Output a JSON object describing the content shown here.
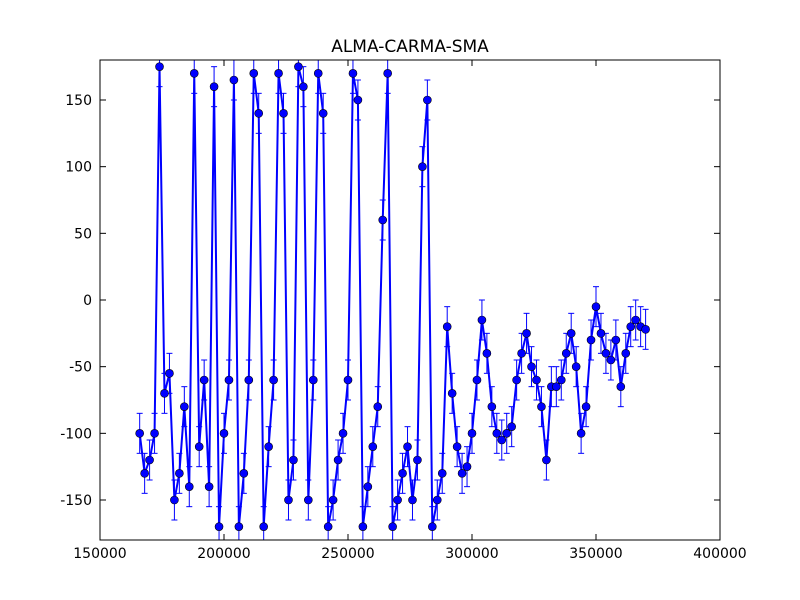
{
  "chart_data": {
    "type": "errorbar",
    "title": "ALMA-CARMA-SMA",
    "xlim": [
      150000,
      400000
    ],
    "xticks": [
      150000,
      200000,
      250000,
      300000,
      350000,
      400000
    ],
    "ylim": [
      -180,
      180
    ],
    "yticks": [
      -150,
      -100,
      -50,
      0,
      50,
      100,
      150
    ],
    "series": [
      {
        "color": "#0000ff",
        "marker_color": "#0000ff",
        "yerr": 15,
        "x": [
          166000,
          168000,
          170000,
          172000,
          174000,
          176000,
          178000,
          180000,
          182000,
          184000,
          186000,
          188000,
          190000,
          192000,
          194000,
          196000,
          198000,
          200000,
          202000,
          204000,
          206000,
          208000,
          210000,
          212000,
          214000,
          216000,
          218000,
          220000,
          222000,
          224000,
          226000,
          228000,
          230000,
          232000,
          234000,
          236000,
          238000,
          240000,
          242000,
          244000,
          246000,
          248000,
          250000,
          252000,
          254000,
          256000,
          258000,
          260000,
          262000,
          264000,
          266000,
          268000,
          270000,
          272000,
          274000,
          276000,
          278000,
          280000,
          282000,
          284000,
          286000,
          288000,
          290000,
          292000,
          294000,
          296000,
          298000,
          300000,
          302000,
          304000,
          306000,
          308000,
          310000,
          312000,
          314000,
          316000,
          318000,
          320000,
          322000,
          324000,
          326000,
          328000,
          330000,
          332000,
          334000,
          336000,
          338000,
          340000,
          342000,
          344000,
          346000,
          348000,
          350000,
          352000,
          354000,
          356000,
          358000,
          360000,
          362000,
          364000,
          366000,
          368000,
          370000
        ],
        "values": [
          -100,
          -130,
          -120,
          -100,
          175,
          -70,
          -55,
          -150,
          -130,
          -80,
          -140,
          170,
          -110,
          -60,
          -140,
          160,
          -170,
          -100,
          -60,
          165,
          -170,
          -130,
          -60,
          170,
          140,
          -170,
          -110,
          -60,
          170,
          140,
          -150,
          -120,
          175,
          160,
          -150,
          -60,
          170,
          140,
          -170,
          -150,
          -120,
          -100,
          -60,
          170,
          150,
          -170,
          -140,
          -110,
          -80,
          60,
          170,
          -170,
          -150,
          -130,
          -110,
          -150,
          -120,
          100,
          150,
          -170,
          -150,
          -130,
          -20,
          -70,
          -110,
          -130,
          -125,
          -100,
          -60,
          -15,
          -40,
          -80,
          -100,
          -105,
          -100,
          -95,
          -60,
          -40,
          -25,
          -50,
          -60,
          -80,
          -120,
          -65,
          -65,
          -60,
          -40,
          -25,
          -50,
          -100,
          -80,
          -30,
          -5,
          -25,
          -40,
          -45,
          -30,
          -65,
          -40,
          -20,
          -15,
          -20,
          -22
        ]
      }
    ]
  }
}
